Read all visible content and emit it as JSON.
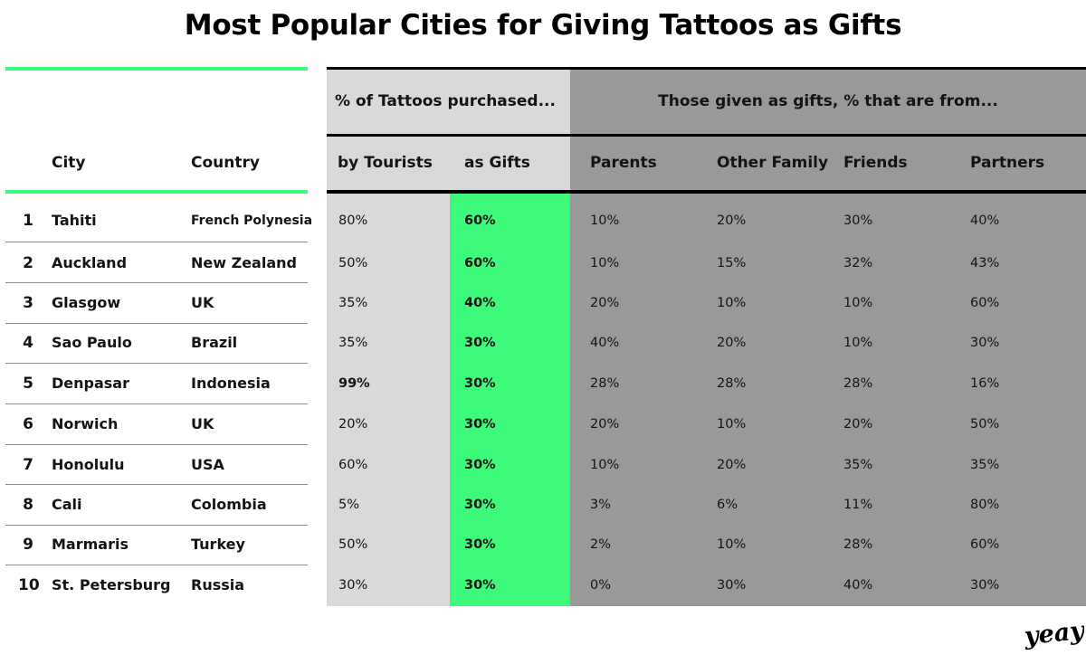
{
  "chart_data": {
    "type": "table",
    "title": "Most Popular Cities for Giving Tattoos as Gifts",
    "group_headers": {
      "purchased": "% of Tattoos purchased...",
      "gifts_from": "Those given as gifts, % that are from..."
    },
    "columns": [
      "City",
      "Country",
      "by Tourists",
      "as Gifts",
      "Parents",
      "Other Family",
      "Friends",
      "Partners"
    ],
    "rows": [
      {
        "rank": "1",
        "city": "Tahiti",
        "country": "French Polynesia",
        "by_tourists": "80%",
        "as_gifts": "60%",
        "parents": "10%",
        "other_family": "20%",
        "friends": "30%",
        "partners": "40%"
      },
      {
        "rank": "2",
        "city": "Auckland",
        "country": "New Zealand",
        "by_tourists": "50%",
        "as_gifts": "60%",
        "parents": "10%",
        "other_family": "15%",
        "friends": "32%",
        "partners": "43%"
      },
      {
        "rank": "3",
        "city": "Glasgow",
        "country": "UK",
        "by_tourists": "35%",
        "as_gifts": "40%",
        "parents": "20%",
        "other_family": "10%",
        "friends": "10%",
        "partners": "60%"
      },
      {
        "rank": "4",
        "city": "Sao Paulo",
        "country": "Brazil",
        "by_tourists": "35%",
        "as_gifts": "30%",
        "parents": "40%",
        "other_family": "20%",
        "friends": "10%",
        "partners": "30%"
      },
      {
        "rank": "5",
        "city": "Denpasar",
        "country": "Indonesia",
        "by_tourists": "99%",
        "as_gifts": "30%",
        "parents": "28%",
        "other_family": "28%",
        "friends": "28%",
        "partners": "16%"
      },
      {
        "rank": "6",
        "city": "Norwich",
        "country": "UK",
        "by_tourists": "20%",
        "as_gifts": "30%",
        "parents": "20%",
        "other_family": "10%",
        "friends": "20%",
        "partners": "50%"
      },
      {
        "rank": "7",
        "city": "Honolulu",
        "country": "USA",
        "by_tourists": "60%",
        "as_gifts": "30%",
        "parents": "10%",
        "other_family": "20%",
        "friends": "35%",
        "partners": "35%"
      },
      {
        "rank": "8",
        "city": "Cali",
        "country": "Colombia",
        "by_tourists": "5%",
        "as_gifts": "30%",
        "parents": "3%",
        "other_family": "6%",
        "friends": "11%",
        "partners": "80%"
      },
      {
        "rank": "9",
        "city": "Marmaris",
        "country": "Turkey",
        "by_tourists": "50%",
        "as_gifts": "30%",
        "parents": "2%",
        "other_family": "10%",
        "friends": "28%",
        "partners": "60%"
      },
      {
        "rank": "10",
        "city": "St. Petersburg",
        "country": "Russia",
        "by_tourists": "30%",
        "as_gifts": "30%",
        "parents": "0%",
        "other_family": "30%",
        "friends": "40%",
        "partners": "30%"
      }
    ]
  },
  "logo_text": "yeay",
  "colors": {
    "accent_green": "#3dfa7a",
    "light_gray": "#d9d9d9",
    "dark_gray": "#999999",
    "rule_black": "#000000"
  }
}
